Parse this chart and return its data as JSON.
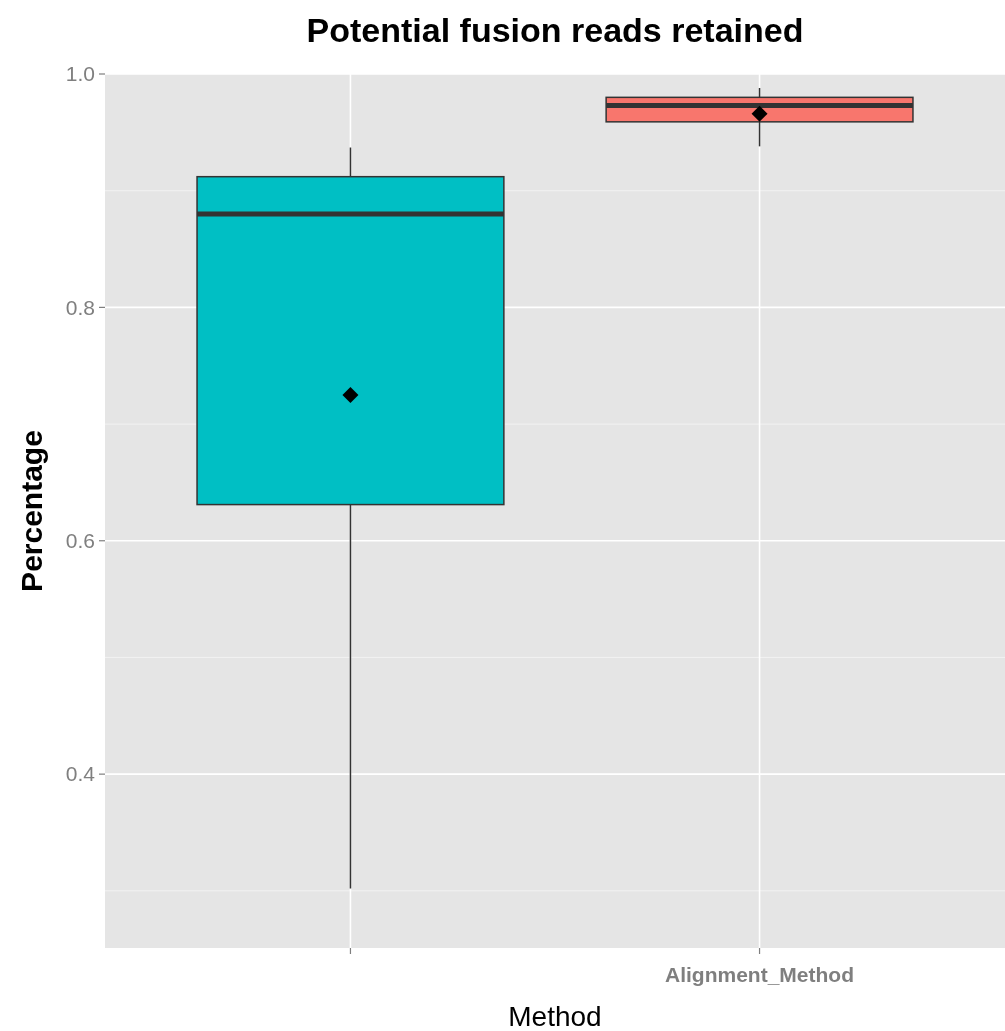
{
  "chart_data": {
    "type": "box",
    "title": "Potential fusion reads retained",
    "xlabel": "Method",
    "ylabel": "Percentage",
    "categories": [
      null,
      "Alignment_Method"
    ],
    "colors": [
      "#00bfc4",
      "#f8766d"
    ],
    "boxes": [
      {
        "low": 0.302,
        "q1": 0.631,
        "median": 0.88,
        "q3": 0.912,
        "high": 0.937,
        "mean": 0.725
      },
      {
        "low": 0.938,
        "q1": 0.959,
        "median": 0.973,
        "q3": 0.98,
        "high": 0.988,
        "mean": 0.966
      }
    ],
    "marker": "diamond",
    "ylim": [
      0.251,
      1.0
    ],
    "yticks": [
      {
        "value": 0.3,
        "label": null
      },
      {
        "value": 0.4,
        "label": "0.4"
      },
      {
        "value": 0.5,
        "label": null
      },
      {
        "value": 0.6,
        "label": "0.6"
      },
      {
        "value": 0.7,
        "label": null
      },
      {
        "value": 0.8,
        "label": "0.8"
      },
      {
        "value": 0.9,
        "label": null
      },
      {
        "value": 1.0,
        "label": "1.0"
      }
    ],
    "grid": true
  }
}
